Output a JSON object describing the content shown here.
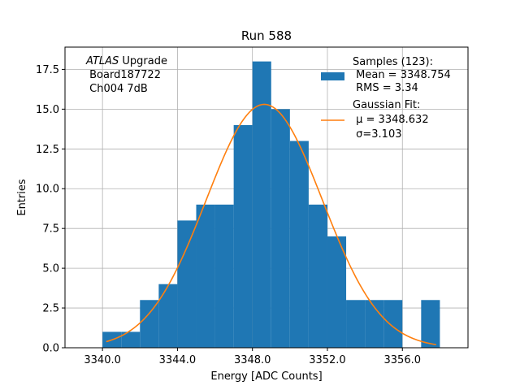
{
  "chart_data": {
    "type": "histogram",
    "title": "Run 588",
    "xlabel": "Energy [ADC Counts]",
    "ylabel": "Entries",
    "xlim": [
      3338.0,
      3359.5
    ],
    "ylim": [
      0,
      18.9
    ],
    "xticks": [
      3340.0,
      3344.0,
      3348.0,
      3352.0,
      3356.0
    ],
    "xtick_labels": [
      "3340.0",
      "3344.0",
      "3348.0",
      "3352.0",
      "3356.0"
    ],
    "yticks": [
      0.0,
      2.5,
      5.0,
      7.5,
      10.0,
      12.5,
      15.0,
      17.5
    ],
    "ytick_labels": [
      "0.0",
      "2.5",
      "5.0",
      "7.5",
      "10.0",
      "12.5",
      "15.0",
      "17.5"
    ],
    "grid": true,
    "bin_edges": [
      3340,
      3341,
      3342,
      3343,
      3344,
      3345,
      3346,
      3347,
      3348,
      3349,
      3350,
      3351,
      3352,
      3353,
      3354,
      3355,
      3356,
      3357,
      3358
    ],
    "counts": [
      1,
      1,
      3,
      4,
      8,
      9,
      9,
      14,
      18,
      15,
      13,
      9,
      7,
      3,
      3,
      3,
      0,
      3
    ],
    "bar_color": "#1f77b4",
    "fit": {
      "name": "Gaussian Fit",
      "amplitude": 15.3,
      "mu": 3348.632,
      "sigma": 3.103,
      "x_range": [
        3340.2,
        3357.8
      ],
      "color": "#ff7f0e"
    },
    "annotation": {
      "line1_italic": "ATLAS",
      "line1_rest": " Upgrade",
      "line2": " Board187722",
      "line3": " Ch004 7dB"
    },
    "legend": {
      "position": "upper-right",
      "hist_label_1": "Samples (123):",
      "hist_label_2": " Mean = 3348.754",
      "hist_label_3": " RMS = 3.34",
      "fit_label_1": "Gaussian Fit:",
      "fit_label_2": " μ = 3348.632",
      "fit_label_3": " σ=3.103"
    }
  }
}
